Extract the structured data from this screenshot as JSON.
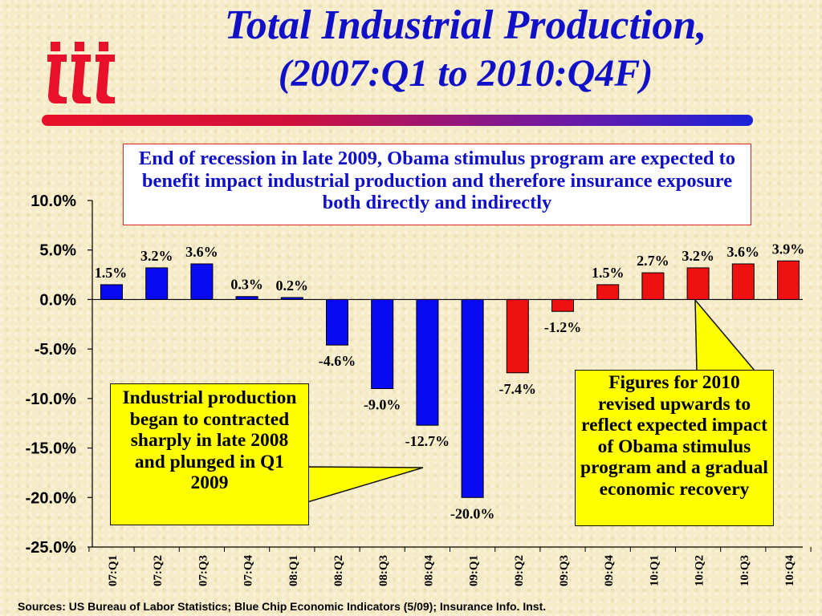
{
  "header": {
    "title_line1": "Total Industrial Production,",
    "title_line2": "(2007:Q1 to 2010:Q4F)"
  },
  "logo": {
    "icon": "iii-logo-icon",
    "color": "#e8102a"
  },
  "annotations": {
    "top": "End of recession in late 2009, Obama stimulus program are expected to benefit impact industrial production and therefore insurance exposure both directly and indirectly",
    "left": "Industrial production began to contracted sharply in late 2008 and plunged in Q1 2009",
    "right": "Figures for 2010 revised upwards to reflect expected impact of Obama stimulus program and a gradual economic recovery"
  },
  "footer": {
    "sources": "Sources: US Bureau of Labor Statistics; Blue Chip Economic Indicators (5/09); Insurance Info. Inst."
  },
  "colors": {
    "actual": "#0a0af0",
    "forecast": "#ee1111",
    "title": "#1010c8"
  },
  "chart_data": {
    "type": "bar",
    "categories": [
      "07:Q1",
      "07:Q2",
      "07:Q3",
      "07:Q4",
      "08:Q1",
      "08:Q2",
      "08:Q3",
      "08:Q4",
      "09:Q1",
      "09:Q2",
      "09:Q3",
      "09:Q4",
      "10:Q1",
      "10:Q2",
      "10:Q3",
      "10:Q4"
    ],
    "values": [
      1.5,
      3.2,
      3.6,
      0.3,
      0.2,
      -4.6,
      -9.0,
      -12.7,
      -20.0,
      -7.4,
      -1.2,
      1.5,
      2.7,
      3.2,
      3.6,
      3.9
    ],
    "data_labels": [
      "1.5%",
      "3.2%",
      "3.6%",
      "0.3%",
      "0.2%",
      "-4.6%",
      "-9.0%",
      "-12.7%",
      "-20.0%",
      "-7.4%",
      "-1.2%",
      "1.5%",
      "2.7%",
      "3.2%",
      "3.6%",
      "3.9%"
    ],
    "bar_series": [
      "actual",
      "actual",
      "actual",
      "actual",
      "actual",
      "actual",
      "actual",
      "actual",
      "actual",
      "forecast",
      "forecast",
      "forecast",
      "forecast",
      "forecast",
      "forecast",
      "forecast"
    ],
    "ylim": [
      -25,
      10
    ],
    "yticks": [
      10,
      5,
      0,
      -5,
      -10,
      -15,
      -20,
      -25
    ],
    "ytick_labels": [
      "10.0%",
      "5.0%",
      "0.0%",
      "-5.0%",
      "-10.0%",
      "-15.0%",
      "-20.0%",
      "-25.0%"
    ],
    "title": "Total Industrial Production, (2007:Q1 to 2010:Q4F)",
    "xlabel": "",
    "ylabel": "",
    "grid": false,
    "legend": "none"
  }
}
